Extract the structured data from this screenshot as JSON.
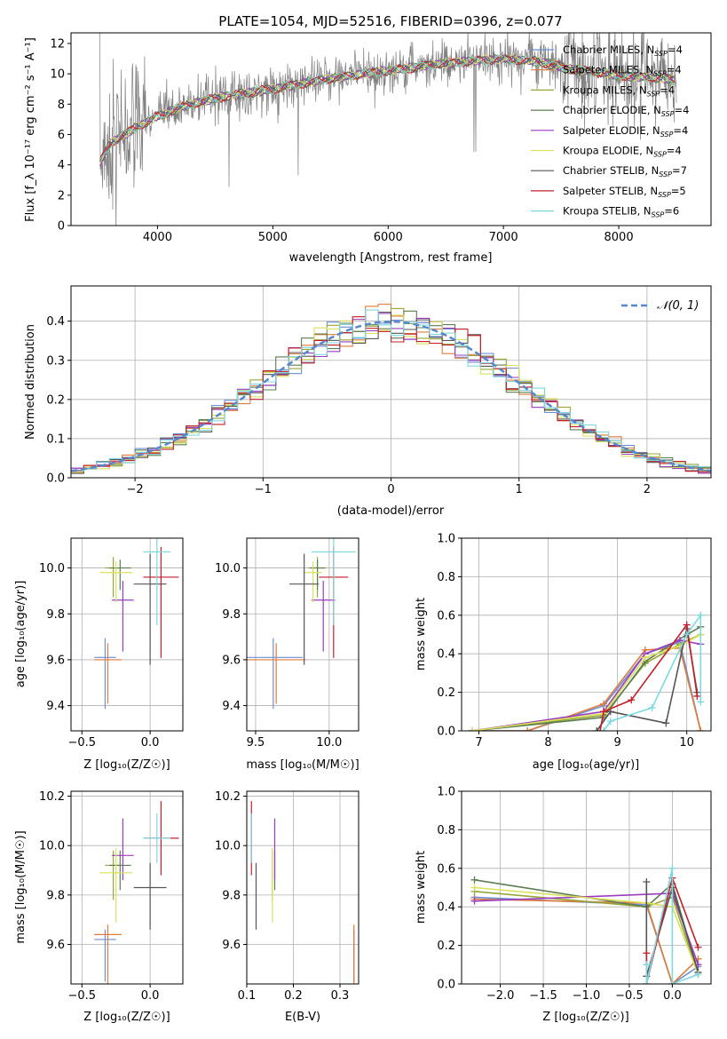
{
  "panels": {
    "spectrum": {
      "title": "PLATE=1054, MJD=52516, FIBERID=0396, z=0.077",
      "xlabel": "wavelength [Angstrom, rest frame]",
      "ylabel": "Flux [f_λ 10⁻¹⁷ erg cm⁻² s⁻¹ A⁻¹]"
    },
    "residuals": {
      "xlabel": "(data-model)/error",
      "ylabel": "Normed distribution",
      "legend": "𝒩(0, 1)"
    },
    "age_vs_Z": {
      "xlabel": "Z [log₁₀(Z/Z☉)]",
      "ylabel": "age  [log₁₀(age/yr)]"
    },
    "age_vs_mass": {
      "xlabel": "mass [log₁₀(M/M☉)]"
    },
    "massweight_vs_age": {
      "xlabel": "age  [log₁₀(age/yr)]",
      "ylabel": "mass weight"
    },
    "mass_vs_Z": {
      "xlabel": "Z [log₁₀(Z/Z☉)]",
      "ylabel": "mass [log₁₀(M/M☉)]"
    },
    "mass_vs_EBV": {
      "xlabel": "E(B-V)"
    },
    "massweight_vs_Z": {
      "xlabel": "Z [log₁₀(Z/Z☉)]",
      "ylabel": "mass weight"
    }
  },
  "models": [
    {
      "label": "Chabrier MILES, N_SSP=4",
      "color": "#6b8fd6",
      "Z": [
        -0.33,
        0.08
      ],
      "age": [
        9.61,
        0.14
      ],
      "mass": [
        9.62,
        0.2
      ],
      "mass_err": [
        0.17,
        0.04
      ],
      "ebv": 0.33
    },
    {
      "label": "Salpeter MILES, N_SSP=4",
      "color": "#e07b39",
      "Z": [
        -0.31,
        0.1
      ],
      "age": [
        9.6,
        0.12
      ],
      "mass": [
        9.64,
        0.2
      ],
      "mass_err": [
        0.2,
        0.04
      ],
      "ebv": 0.33
    },
    {
      "label": "Kroupa MILES, N_SSP=4",
      "color": "#98a53a",
      "Z": [
        -0.27,
        0.06
      ],
      "age": [
        10.0,
        0.08
      ],
      "mass": [
        9.92,
        0.06
      ],
      "mass_err": [
        0.14,
        0.06
      ],
      "ebv": 0.155
    },
    {
      "label": "Chabrier ELODIE, N_SSP=4",
      "color": "#5c7d52",
      "Z": [
        -0.22,
        0.08
      ],
      "age": [
        10.0,
        0.06
      ],
      "mass": [
        9.92,
        0.05
      ],
      "mass_err": [
        0.1,
        0.06
      ],
      "ebv": 0.16
    },
    {
      "label": "Salpeter ELODIE, N_SSP=4",
      "color": "#9b3bbf",
      "Z": [
        -0.2,
        0.08
      ],
      "age": [
        9.86,
        0.14
      ],
      "mass": [
        9.96,
        0.08
      ],
      "mass_err": [
        0.1,
        0.15
      ],
      "ebv": 0.16
    },
    {
      "label": "Kroupa ELODIE, N_SSP=4",
      "color": "#d9e05a",
      "Z": [
        -0.25,
        0.12
      ],
      "age": [
        9.98,
        0.08
      ],
      "mass": [
        9.89,
        0.06
      ],
      "mass_err": [
        0.2,
        0.1
      ],
      "ebv": 0.155
    },
    {
      "label": "Chabrier STELIB, N_SSP=7",
      "color": "#555555",
      "Z": [
        0.0,
        0.12
      ],
      "age": [
        9.93,
        0.22
      ],
      "mass": [
        9.83,
        0.1
      ],
      "mass_err": [
        0.17,
        0.1
      ],
      "ebv": 0.12
    },
    {
      "label": "Salpeter STELIB, N_SSP=5",
      "color": "#c21f2a",
      "Z": [
        0.08,
        0.13
      ],
      "age": [
        9.96,
        0.22
      ],
      "mass": [
        10.03,
        0.1
      ],
      "mass_err": [
        0.15,
        0.15
      ],
      "ebv": 0.11
    },
    {
      "label": "Kroupa STELIB, N_SSP=6",
      "color": "#7dd8e0",
      "Z": [
        0.05,
        0.1
      ],
      "age": [
        10.07,
        0.2
      ],
      "mass": [
        10.03,
        0.15
      ],
      "mass_err": [
        0.1,
        0.1
      ],
      "ebv": 0.11
    }
  ],
  "chart_data": [
    {
      "type": "line",
      "title": "PLATE=1054, MJD=52516, FIBERID=0396, z=0.077",
      "xlabel": "wavelength [Angstrom, rest frame]",
      "ylabel": "Flux [f_λ 10⁻¹⁷ erg cm⁻² s⁻¹ A⁻¹]",
      "xlim": [
        3250,
        8800
      ],
      "ylim": [
        0,
        12.7
      ],
      "xticks": [
        4000,
        5000,
        6000,
        7000,
        8000
      ],
      "yticks": [
        0,
        2,
        4,
        6,
        8,
        10,
        12
      ],
      "data_color": "#808080",
      "continuum": {
        "x": [
          3500,
          3600,
          3800,
          4000,
          4200,
          4500,
          5000,
          5500,
          6000,
          6500,
          7000,
          7300,
          7600,
          8000,
          8400,
          8500
        ],
        "y": [
          4.2,
          5.5,
          6.4,
          7.2,
          7.8,
          8.4,
          9.0,
          9.7,
          10.2,
          10.7,
          11.0,
          10.8,
          10.3,
          9.9,
          9.7,
          9.6
        ]
      },
      "legend_placement": "top-right",
      "grid": false
    },
    {
      "type": "bar",
      "xlabel": "(data-model)/error",
      "ylabel": "Normed distribution",
      "xlim": [
        -2.5,
        2.5
      ],
      "ylim": [
        0,
        0.49
      ],
      "xticks": [
        -2,
        -1,
        0,
        1,
        2
      ],
      "yticks": [
        0.0,
        0.1,
        0.2,
        0.3,
        0.4
      ],
      "reference": {
        "name": "𝒩(0, 1)",
        "style": "dashed",
        "color": "#5588cc"
      },
      "bin_width": 0.1,
      "grid": true,
      "legend_placement": "top-right"
    },
    {
      "type": "scatter",
      "xlabel": "Z [log₁₀(Z/Z☉)]",
      "ylabel": "age  [log₁₀(age/yr)]",
      "xlim": [
        -0.58,
        0.24
      ],
      "ylim": [
        9.29,
        10.13
      ],
      "xticks": [
        -0.5,
        0.0
      ],
      "yticks": [
        9.4,
        9.6,
        9.8,
        10.0
      ],
      "grid": true
    },
    {
      "type": "scatter",
      "xlabel": "mass [log₁₀(M/M☉)]",
      "xlim": [
        9.44,
        10.2
      ],
      "ylim": [
        9.29,
        10.13
      ],
      "xticks": [
        9.5,
        10.0
      ],
      "yticks": [
        9.4,
        9.6,
        9.8,
        10.0
      ],
      "grid": true
    },
    {
      "type": "line",
      "xlabel": "age  [log₁₀(age/yr)]",
      "ylabel": "mass weight",
      "xlim": [
        6.75,
        10.35
      ],
      "ylim": [
        0,
        1.0
      ],
      "xticks": [
        7,
        8,
        9,
        10
      ],
      "yticks": [
        0.0,
        0.2,
        0.4,
        0.6,
        0.8,
        1.0
      ],
      "grid": true,
      "series": [
        {
          "color": "#6b8fd6",
          "x": [
            6.9,
            7.7,
            8.8,
            9.4,
            9.9,
            10.2
          ],
          "y": [
            0.0,
            0.0,
            0.13,
            0.4,
            0.46,
            0.0
          ]
        },
        {
          "color": "#e07b39",
          "x": [
            6.9,
            7.7,
            8.8,
            9.4,
            9.9,
            10.2
          ],
          "y": [
            0.0,
            0.0,
            0.14,
            0.42,
            0.43,
            0.0
          ]
        },
        {
          "color": "#98a53a",
          "x": [
            6.9,
            8.8,
            9.4,
            9.9,
            10.2
          ],
          "y": [
            0.0,
            0.08,
            0.35,
            0.45,
            0.5
          ]
        },
        {
          "color": "#5c7d52",
          "x": [
            6.9,
            8.8,
            9.4,
            10.0,
            10.2
          ],
          "y": [
            0.0,
            0.07,
            0.36,
            0.5,
            0.54
          ]
        },
        {
          "color": "#9b3bbf",
          "x": [
            6.9,
            8.8,
            9.4,
            9.9,
            10.2
          ],
          "y": [
            0.0,
            0.1,
            0.4,
            0.47,
            0.45
          ]
        },
        {
          "color": "#d9e05a",
          "x": [
            6.9,
            8.8,
            9.4,
            9.9,
            10.2
          ],
          "y": [
            0.0,
            0.09,
            0.38,
            0.44,
            0.5
          ]
        },
        {
          "color": "#555555",
          "x": [
            8.7,
            8.9,
            9.7,
            10.0,
            10.15
          ],
          "y": [
            0.0,
            0.1,
            0.04,
            0.53,
            0.2
          ]
        },
        {
          "color": "#c21f2a",
          "x": [
            8.75,
            8.8,
            9.2,
            10.0,
            10.15
          ],
          "y": [
            0.0,
            0.1,
            0.16,
            0.55,
            0.18
          ]
        },
        {
          "color": "#7dd8e0",
          "x": [
            8.8,
            8.9,
            9.5,
            10.0,
            10.2,
            10.2
          ],
          "y": [
            0.0,
            0.05,
            0.12,
            0.5,
            0.6,
            0.15
          ]
        }
      ]
    },
    {
      "type": "scatter",
      "xlabel": "Z [log₁₀(Z/Z☉)]",
      "ylabel": "mass [log₁₀(M/M☉)]",
      "xlim": [
        -0.58,
        0.24
      ],
      "ylim": [
        9.44,
        10.22
      ],
      "xticks": [
        -0.5,
        0.0
      ],
      "yticks": [
        9.6,
        9.8,
        10.0,
        10.2
      ],
      "grid": true
    },
    {
      "type": "scatter",
      "xlabel": "E(B-V)",
      "xlim": [
        0.1,
        0.34
      ],
      "ylim": [
        9.44,
        10.22
      ],
      "xticks": [
        0.1,
        0.2,
        0.3
      ],
      "yticks": [
        9.6,
        9.8,
        10.0,
        10.2
      ],
      "grid": true
    },
    {
      "type": "line",
      "xlabel": "Z [log₁₀(Z/Z☉)]",
      "ylabel": "mass weight",
      "xlim": [
        -2.45,
        0.45
      ],
      "ylim": [
        0,
        1.0
      ],
      "xticks": [
        -2.0,
        -1.5,
        -1.0,
        -0.5,
        0.0
      ],
      "yticks": [
        0.0,
        0.2,
        0.4,
        0.6,
        0.8,
        1.0
      ],
      "grid": true,
      "series": [
        {
          "color": "#6b8fd6",
          "x": [
            -2.3,
            -0.3,
            0.0,
            0.3
          ],
          "y": [
            0.45,
            0.41,
            0.0,
            0.09
          ]
        },
        {
          "color": "#e07b39",
          "x": [
            -2.3,
            -0.3,
            0.0,
            0.3
          ],
          "y": [
            0.44,
            0.42,
            0.0,
            0.13
          ]
        },
        {
          "color": "#98a53a",
          "x": [
            -2.3,
            -0.3,
            0.0,
            0.3
          ],
          "y": [
            0.48,
            0.4,
            0.45,
            0.05
          ]
        },
        {
          "color": "#5c7d52",
          "x": [
            -2.3,
            -0.3,
            0.0,
            0.3
          ],
          "y": [
            0.54,
            0.4,
            0.52,
            0.06
          ]
        },
        {
          "color": "#9b3bbf",
          "x": [
            -2.3,
            0.0,
            0.3
          ],
          "y": [
            0.43,
            0.47,
            0.1
          ]
        },
        {
          "color": "#d9e05a",
          "x": [
            -2.3,
            -0.3,
            0.0,
            0.3
          ],
          "y": [
            0.5,
            0.42,
            0.4,
            0.05
          ]
        },
        {
          "color": "#555555",
          "x": [
            -0.3,
            -0.3,
            0.0,
            0.3
          ],
          "y": [
            0.53,
            0.04,
            0.5,
            0.06
          ]
        },
        {
          "color": "#c21f2a",
          "x": [
            -0.3,
            -0.3,
            0.0,
            0.3
          ],
          "y": [
            0.16,
            0.0,
            0.55,
            0.19
          ]
        },
        {
          "color": "#7dd8e0",
          "x": [
            -0.3,
            -0.3,
            0.0,
            0.0,
            0.3
          ],
          "y": [
            0.1,
            0.0,
            0.6,
            0.0,
            0.05
          ]
        }
      ]
    }
  ]
}
